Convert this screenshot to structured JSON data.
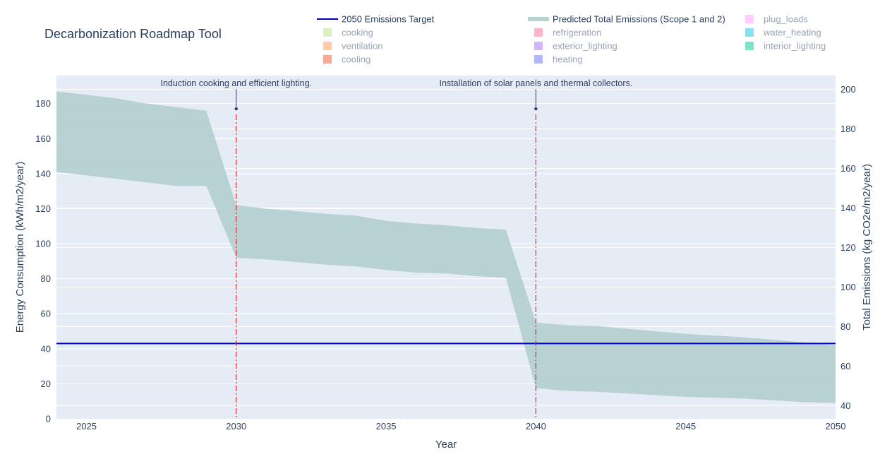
{
  "chart_data": {
    "type": "area",
    "title": "Decarbonization Roadmap Tool",
    "xlabel": "Year",
    "ylabel_left": "Energy Consumption (kWh/m2/year)",
    "ylabel_right": "Total Emissions (kg CO2e/m2/year)",
    "xlim": [
      2024,
      2050
    ],
    "ylim_left": [
      0,
      196
    ],
    "ylim_right": [
      33.3,
      207
    ],
    "x_ticks": [
      2025,
      2030,
      2035,
      2040,
      2045,
      2050
    ],
    "y_left_ticks": [
      0,
      20,
      40,
      60,
      80,
      100,
      120,
      140,
      160,
      180
    ],
    "y_right_ticks": [
      40,
      60,
      80,
      100,
      120,
      140,
      160,
      180,
      200
    ],
    "target": {
      "name": "2050 Emissions Target",
      "value_left": 43,
      "color": "#0000cc"
    },
    "emissions_band": {
      "name": "Predicted Total Emissions (Scope 1 and 2)",
      "color": "#b0cccc",
      "x": [
        2024,
        2025,
        2026,
        2027,
        2028,
        2029,
        2030,
        2031,
        2032,
        2033,
        2034,
        2035,
        2036,
        2037,
        2038,
        2039,
        2040,
        2041,
        2042,
        2043,
        2044,
        2045,
        2046,
        2047,
        2048,
        2049,
        2050
      ],
      "upper": [
        187,
        185,
        183,
        180,
        178,
        176,
        122,
        120,
        118.5,
        117,
        116,
        113,
        111.5,
        110.5,
        109,
        108,
        55,
        53.5,
        53,
        51.5,
        50,
        48.5,
        47.5,
        46.5,
        45,
        43.5,
        42
      ],
      "lower": [
        141,
        139,
        137,
        135,
        133,
        133,
        92,
        91,
        89.5,
        88,
        87,
        85,
        83.5,
        83,
        81.5,
        80.5,
        17.5,
        16,
        15.5,
        14.5,
        13.5,
        12.5,
        12,
        11.5,
        10.5,
        9.5,
        9
      ]
    },
    "milestones": [
      {
        "year": 2030,
        "label": "Induction cooking and efficient lighting.",
        "marker_value": 177
      },
      {
        "year": 2040,
        "label": "Installation of solar panels and thermal collectors.",
        "marker_value": 177
      }
    ],
    "legend": [
      {
        "label": "2050 Emissions Target",
        "kind": "line",
        "color": "#0000cc",
        "active": true
      },
      {
        "label": "Predicted Total Emissions (Scope 1 and 2)",
        "kind": "band",
        "color": "#b7d3cd",
        "active": true
      },
      {
        "label": "plug_loads",
        "kind": "swatch",
        "color": "#ffcdff",
        "active": false
      },
      {
        "label": "cooking",
        "kind": "swatch",
        "color": "#dcefc2",
        "active": false
      },
      {
        "label": "refrigeration",
        "kind": "swatch",
        "color": "#ffb3c8",
        "active": false
      },
      {
        "label": "water_heating",
        "kind": "swatch",
        "color": "#8ae0ee",
        "active": false
      },
      {
        "label": "ventilation",
        "kind": "swatch",
        "color": "#ffcba6",
        "active": false
      },
      {
        "label": "exterior_lighting",
        "kind": "swatch",
        "color": "#d3b2ff",
        "active": false
      },
      {
        "label": "interior_lighting",
        "kind": "swatch",
        "color": "#7ee3c7",
        "active": false
      },
      {
        "label": "cooling",
        "kind": "swatch",
        "color": "#f7a897",
        "active": false
      },
      {
        "label": "heating",
        "kind": "swatch",
        "color": "#b0b6ff",
        "active": false
      }
    ]
  }
}
